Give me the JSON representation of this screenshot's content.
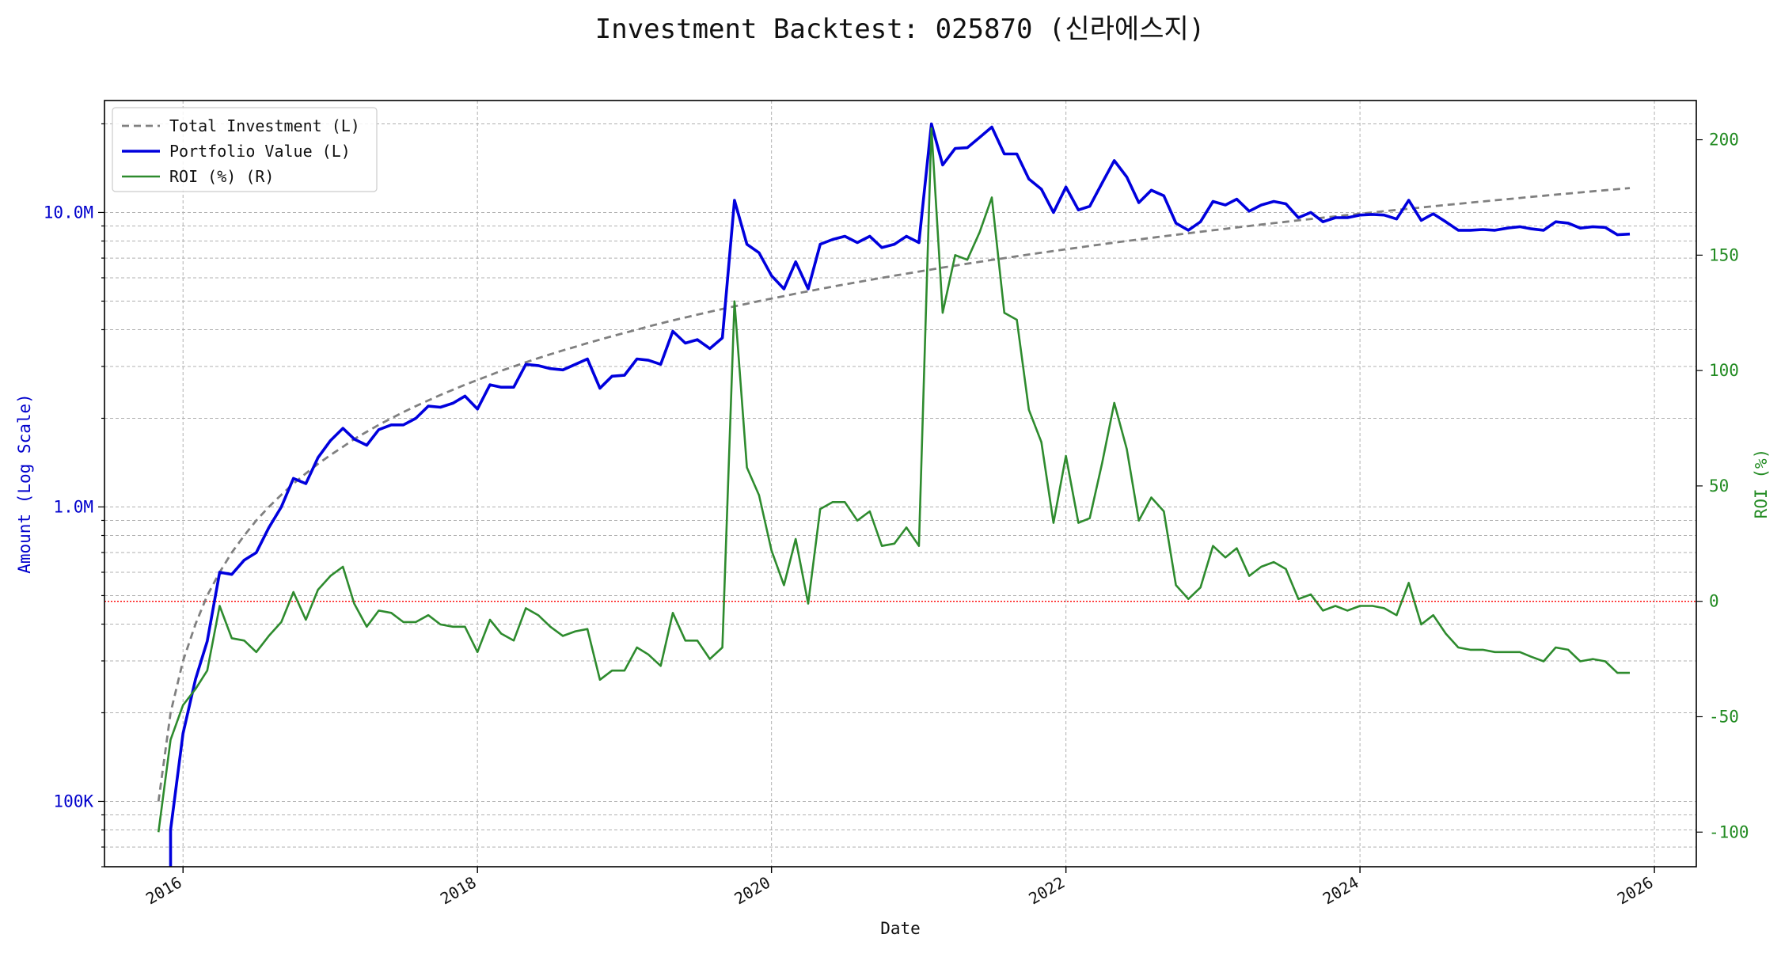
{
  "chart_data": {
    "type": "line",
    "title": "Investment Backtest: 025870 (신라에스지)",
    "xlabel": "Date",
    "ylabel_left": "Amount (Log Scale)",
    "ylabel_right": "ROI (%)",
    "x_range": [
      "2015-06-20",
      "2026-04-15"
    ],
    "ylim_left": [
      60000,
      24000000
    ],
    "ylim_right": [
      -115,
      217
    ],
    "y_left_scale": "log",
    "grid": true,
    "legend_position": "upper-left",
    "x_ticks": [
      {
        "label": "2016",
        "date": "2016-01-01"
      },
      {
        "label": "2018",
        "date": "2018-01-01"
      },
      {
        "label": "2020",
        "date": "2020-01-01"
      },
      {
        "label": "2022",
        "date": "2022-01-01"
      },
      {
        "label": "2024",
        "date": "2024-01-01"
      },
      {
        "label": "2026",
        "date": "2026-01-01"
      }
    ],
    "y_left_ticks": [
      {
        "label": "100K",
        "value": 100000
      },
      {
        "label": "1.0M",
        "value": 1000000
      },
      {
        "label": "10.0M",
        "value": 10000000
      }
    ],
    "y_right_ticks": [
      -100,
      -50,
      0,
      50,
      100,
      150,
      200
    ],
    "reference_line": {
      "axis": "right",
      "value": 0,
      "color": "#ff0000"
    },
    "colors": {
      "total_investment": "#808080",
      "portfolio_value": "#0000dd",
      "roi": "#2e8b2e",
      "left_axis": "#0000cc",
      "right_axis": "#228b22"
    },
    "dates": [
      "2015-11-01",
      "2015-12-01",
      "2016-01-01",
      "2016-02-01",
      "2016-03-01",
      "2016-04-01",
      "2016-05-01",
      "2016-06-01",
      "2016-07-01",
      "2016-08-01",
      "2016-09-01",
      "2016-10-01",
      "2016-11-01",
      "2016-12-01",
      "2017-01-01",
      "2017-02-01",
      "2017-03-01",
      "2017-04-01",
      "2017-05-01",
      "2017-06-01",
      "2017-07-01",
      "2017-08-01",
      "2017-09-01",
      "2017-10-01",
      "2017-11-01",
      "2017-12-01",
      "2018-01-01",
      "2018-02-01",
      "2018-03-01",
      "2018-04-01",
      "2018-05-01",
      "2018-06-01",
      "2018-07-01",
      "2018-08-01",
      "2018-09-01",
      "2018-10-01",
      "2018-11-01",
      "2018-12-01",
      "2019-01-01",
      "2019-02-01",
      "2019-03-01",
      "2019-04-01",
      "2019-05-01",
      "2019-06-01",
      "2019-07-01",
      "2019-08-01",
      "2019-09-01",
      "2019-10-01",
      "2019-11-01",
      "2019-12-01",
      "2020-01-01",
      "2020-02-01",
      "2020-03-01",
      "2020-04-01",
      "2020-05-01",
      "2020-06-01",
      "2020-07-01",
      "2020-08-01",
      "2020-09-01",
      "2020-10-01",
      "2020-11-01",
      "2020-12-01",
      "2021-01-01",
      "2021-02-01",
      "2021-03-01",
      "2021-04-01",
      "2021-05-01",
      "2021-06-01",
      "2021-07-01",
      "2021-08-01",
      "2021-09-01",
      "2021-10-01",
      "2021-11-01",
      "2021-12-01",
      "2022-01-01",
      "2022-02-01",
      "2022-03-01",
      "2022-04-01",
      "2022-05-01",
      "2022-06-01",
      "2022-07-01",
      "2022-08-01",
      "2022-09-01",
      "2022-10-01",
      "2022-11-01",
      "2022-12-01",
      "2023-01-01",
      "2023-02-01",
      "2023-03-01",
      "2023-04-01",
      "2023-05-01",
      "2023-06-01",
      "2023-07-01",
      "2023-08-01",
      "2023-09-01",
      "2023-10-01",
      "2023-11-01",
      "2023-12-01",
      "2024-01-01",
      "2024-02-01",
      "2024-03-01",
      "2024-04-01",
      "2024-05-01",
      "2024-06-01",
      "2024-07-01",
      "2024-08-01",
      "2024-09-01",
      "2024-10-01",
      "2024-11-01",
      "2024-12-01",
      "2025-01-01",
      "2025-02-01",
      "2025-03-01",
      "2025-04-01",
      "2025-05-01",
      "2025-06-01",
      "2025-07-01",
      "2025-08-01",
      "2025-09-01",
      "2025-10-01",
      "2025-11-01"
    ],
    "series": [
      {
        "name": "Total Investment (L)",
        "axis": "left",
        "style": "dashed",
        "values": [
          100000,
          200000,
          300000,
          400000,
          500000,
          600000,
          700000,
          800000,
          900000,
          1000000,
          1100000,
          1200000,
          1300000,
          1400000,
          1500000,
          1600000,
          1700000,
          1800000,
          1900000,
          2000000,
          2100000,
          2200000,
          2300000,
          2400000,
          2500000,
          2600000,
          2700000,
          2800000,
          2900000,
          3000000,
          3100000,
          3200000,
          3300000,
          3400000,
          3500000,
          3600000,
          3700000,
          3800000,
          3900000,
          4000000,
          4100000,
          4200000,
          4300000,
          4400000,
          4500000,
          4600000,
          4700000,
          4800000,
          4900000,
          5000000,
          5100000,
          5200000,
          5300000,
          5400000,
          5500000,
          5600000,
          5700000,
          5800000,
          5900000,
          6000000,
          6100000,
          6200000,
          6300000,
          6400000,
          6500000,
          6600000,
          6700000,
          6800000,
          6900000,
          7000000,
          7100000,
          7200000,
          7300000,
          7400000,
          7500000,
          7600000,
          7700000,
          7800000,
          7900000,
          8000000,
          8100000,
          8200000,
          8300000,
          8400000,
          8500000,
          8600000,
          8700000,
          8800000,
          8900000,
          9000000,
          9100000,
          9200000,
          9300000,
          9400000,
          9500000,
          9600000,
          9700000,
          9800000,
          9900000,
          10000000,
          10100000,
          10200000,
          10300000,
          10400000,
          10500000,
          10600000,
          10700000,
          10800000,
          10900000,
          11000000,
          11100000,
          11200000,
          11300000,
          11400000,
          11500000,
          11600000,
          11700000,
          11800000,
          11900000,
          12000000,
          12100000
        ]
      },
      {
        "name": "Portfolio Value (L)",
        "axis": "left",
        "style": "solid",
        "values": [
          null,
          80000,
          170000,
          260000,
          350000,
          600000,
          590000,
          660000,
          700000,
          850000,
          1000000,
          1250000,
          1200000,
          1470000,
          1680000,
          1850000,
          1700000,
          1620000,
          1830000,
          1900000,
          1900000,
          2000000,
          2200000,
          2180000,
          2250000,
          2380000,
          2150000,
          2600000,
          2550000,
          2550000,
          3050000,
          3020000,
          2950000,
          2920000,
          3050000,
          3180000,
          2530000,
          2780000,
          2800000,
          3180000,
          3150000,
          3050000,
          3950000,
          3600000,
          3700000,
          3450000,
          3750000,
          11000000,
          7800000,
          7300000,
          6100000,
          5500000,
          6800000,
          5500000,
          7800000,
          8100000,
          8300000,
          7900000,
          8300000,
          7600000,
          7800000,
          8300000,
          7900000,
          20000000,
          14500000,
          16500000,
          16600000,
          18000000,
          19500000,
          15800000,
          15800000,
          13000000,
          12000000,
          10000000,
          12200000,
          10200000,
          10500000,
          12600000,
          15000000,
          13200000,
          10800000,
          11900000,
          11400000,
          9200000,
          8700000,
          9300000,
          10900000,
          10600000,
          11100000,
          10100000,
          10600000,
          10900000,
          10700000,
          9600000,
          10000000,
          9300000,
          9600000,
          9600000,
          9800000,
          9850000,
          9800000,
          9500000,
          11000000,
          9400000,
          9900000,
          9300000,
          8700000,
          8700000,
          8750000,
          8700000,
          8850000,
          8950000,
          8800000,
          8700000,
          9300000,
          9200000,
          8850000,
          8950000,
          8900000,
          8400000,
          8450000
        ]
      },
      {
        "name": "ROI (%) (R)",
        "axis": "right",
        "style": "solid",
        "values": [
          -100,
          -60,
          -45,
          -38,
          -30,
          -2,
          -16,
          -17,
          -22,
          -15,
          -9,
          4,
          -8,
          5,
          11,
          15,
          -1,
          -11,
          -4,
          -5,
          -9,
          -9,
          -6,
          -10,
          -11,
          -11,
          -22,
          -8,
          -14,
          -17,
          -3,
          -6,
          -11,
          -15,
          -13,
          -12,
          -34,
          -30,
          -30,
          -20,
          -23,
          -28,
          -5,
          -17,
          -17,
          -25,
          -20,
          130,
          58,
          46,
          22,
          7,
          27,
          -1,
          40,
          43,
          43,
          35,
          39,
          24,
          25,
          32,
          24,
          205,
          125,
          150,
          148,
          160,
          175,
          125,
          122,
          83,
          69,
          34,
          63,
          34,
          36,
          60,
          86,
          66,
          35,
          45,
          39,
          7,
          1,
          6,
          24,
          19,
          23,
          11,
          15,
          17,
          14,
          1,
          3,
          -4,
          -2,
          -4,
          -2,
          -2,
          -3,
          -6,
          8,
          -10,
          -6,
          -14,
          -20,
          -21,
          -21,
          -22,
          -22,
          -22,
          -24,
          -26,
          -20,
          -21,
          -26,
          -25,
          -26,
          -31,
          -31
        ]
      }
    ]
  }
}
